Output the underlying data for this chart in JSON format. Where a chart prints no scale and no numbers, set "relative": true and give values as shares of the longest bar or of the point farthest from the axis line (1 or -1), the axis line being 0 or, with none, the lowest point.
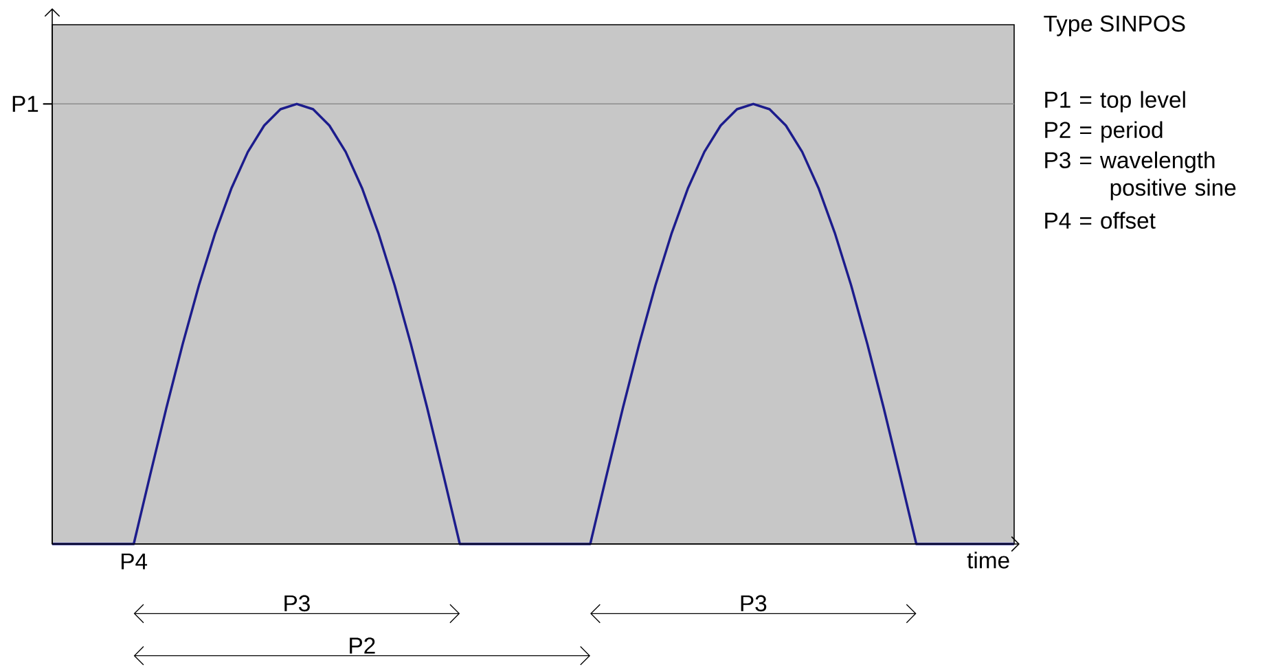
{
  "chart_data": {
    "type": "line",
    "relative": true,
    "color": "#1c1c8c",
    "xlabel": "time",
    "title": "Type SINPOS",
    "categories": [
      null,
      null,
      null,
      null,
      null,
      null,
      null,
      null,
      null,
      null,
      null,
      null,
      null,
      null,
      null,
      null,
      null,
      null,
      null,
      null,
      null,
      null,
      null,
      null,
      null,
      null,
      null,
      null,
      null,
      null,
      null,
      null,
      null,
      null,
      null,
      null,
      null,
      null,
      null,
      null,
      null,
      null,
      null,
      null,
      null,
      null,
      null,
      null,
      null,
      null,
      null,
      null,
      null,
      null,
      null,
      null,
      null,
      null,
      null,
      null
    ],
    "values": [
      0,
      0,
      0,
      0,
      0,
      0,
      0.156,
      0.309,
      0.454,
      0.588,
      0.707,
      0.809,
      0.891,
      0.951,
      0.988,
      1,
      0.988,
      0.951,
      0.891,
      0.809,
      0.707,
      0.588,
      0.454,
      0.309,
      0.156,
      0,
      0,
      0,
      0,
      0,
      0,
      0,
      0,
      0,
      0.156,
      0.309,
      0.454,
      0.588,
      0.707,
      0.809,
      0.891,
      0.951,
      0.988,
      1,
      0.988,
      0.951,
      0.891,
      0.809,
      0.707,
      0.588,
      0.454,
      0.309,
      0.156,
      0,
      0,
      0,
      0,
      0,
      0,
      0
    ],
    "ref_lines": [
      {
        "axis": "y",
        "value": 1,
        "label": "P1",
        "color": "#8c8c8c"
      }
    ],
    "annotations": [
      {
        "text": "P4"
      },
      {
        "text": "P3"
      },
      {
        "text": "P3"
      },
      {
        "text": "P2"
      },
      "P1 = top level",
      "P2 = period",
      "P3 = wavelength positive sine",
      "P4 = offset"
    ]
  }
}
